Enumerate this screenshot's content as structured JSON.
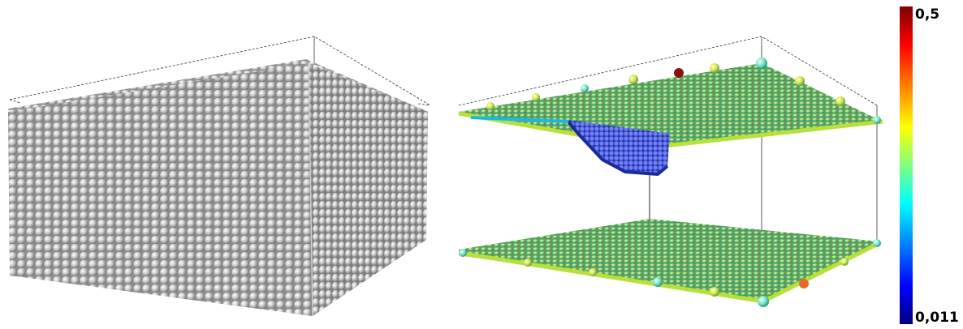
{
  "colorbar": {
    "max_label": "0,5",
    "min_label": "0,011",
    "max_value": 0.5,
    "min_value": 0.011,
    "colors": [
      "#7f0000",
      "#ff0000",
      "#ff7f00",
      "#ffff00",
      "#7fff7f",
      "#00ffff",
      "#007fff",
      "#0000ff",
      "#00007f"
    ]
  },
  "panels": [
    {
      "name": "intact-crystal-block",
      "atom_color": "#c8c8c8"
    },
    {
      "name": "fractured-crystal-layers",
      "top_plate_tint": "#7fcf7f",
      "crack_region_color": "#3a4fd8"
    }
  ]
}
